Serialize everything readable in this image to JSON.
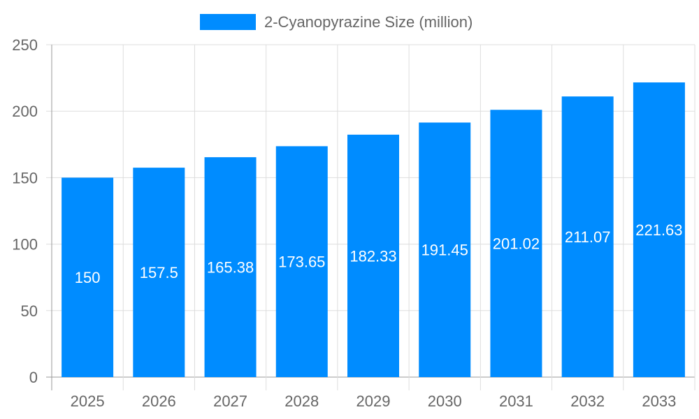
{
  "chart_data": {
    "type": "bar",
    "categories": [
      "2025",
      "2026",
      "2027",
      "2028",
      "2029",
      "2030",
      "2031",
      "2032",
      "2033"
    ],
    "series": [
      {
        "name": "2-Cyanopyrazine Size (million)",
        "values": [
          150,
          157.5,
          165.38,
          173.65,
          182.33,
          191.45,
          201.02,
          211.07,
          221.63
        ],
        "color": "#008cff"
      }
    ],
    "ylim": [
      0,
      250
    ],
    "yticks": [
      0,
      50,
      100,
      150,
      200,
      250
    ],
    "grid": true,
    "legend": "top",
    "data_labels": true
  }
}
